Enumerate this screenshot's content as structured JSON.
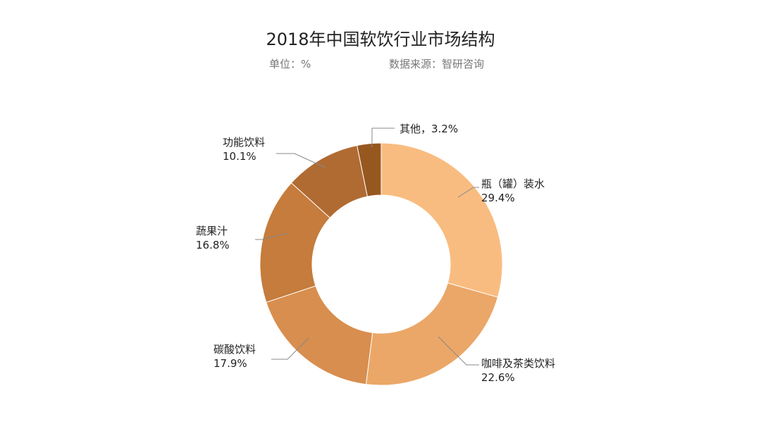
{
  "title": "2018年中国软饮行业市场结构",
  "unit_label": "单位：%",
  "source_label": "数据来源：智研咨询",
  "chart_data": {
    "type": "pie",
    "donut": true,
    "title": "2018年中国软饮行业市场结构",
    "unit": "%",
    "categories": [
      "瓶（罐）装水",
      "咖啡及茶类饮料",
      "碳酸饮料",
      "蔬果汁",
      "功能饮料",
      "其他"
    ],
    "values": [
      29.4,
      22.6,
      17.9,
      16.8,
      10.1,
      3.2
    ],
    "labels": [
      {
        "name": "瓶（罐）装水",
        "value": "29.4%"
      },
      {
        "name": "咖啡及茶类饮料",
        "value": "22.6%"
      },
      {
        "name": "碳酸饮料",
        "value": "17.9%"
      },
      {
        "name": "蔬果汁",
        "value": "16.8%"
      },
      {
        "name": "功能饮料",
        "value": "10.1%"
      },
      {
        "name": "其他",
        "value": "3.2%",
        "inline": "其他，3.2%"
      }
    ],
    "colors": [
      "#F9BC80",
      "#EBA767",
      "#D88E4E",
      "#C57C3C",
      "#B06B32",
      "#975820"
    ],
    "legend": "none"
  }
}
